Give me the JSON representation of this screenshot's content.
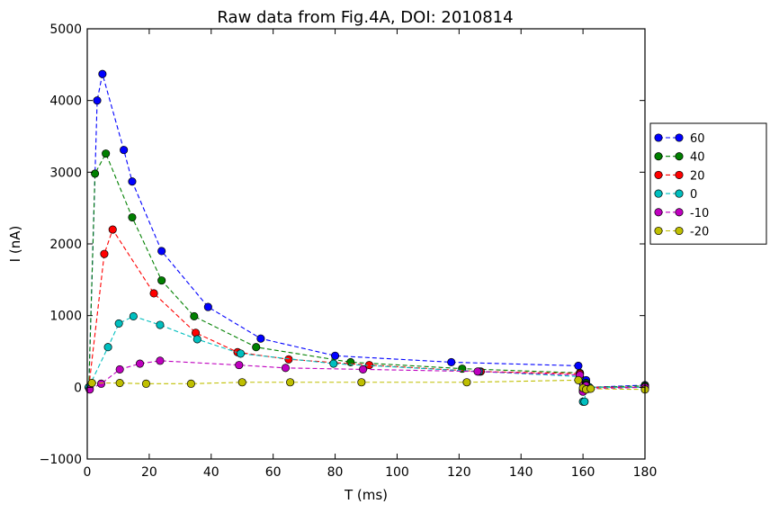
{
  "chart_data": {
    "type": "line",
    "title": "Raw data from Fig.4A, DOI: 2010814",
    "xlabel": "T (ms)",
    "ylabel": "I (nA)",
    "xlim": [
      0,
      180
    ],
    "ylim": [
      -1000,
      5000
    ],
    "x_ticks": [
      "0",
      "20",
      "40",
      "60",
      "80",
      "100",
      "120",
      "140",
      "160",
      "180"
    ],
    "y_ticks": [
      "−1000",
      "0",
      "1000",
      "2000",
      "3000",
      "4000",
      "5000"
    ],
    "grid": false,
    "legend_position": "outside-right",
    "line_style": "dashed",
    "series": [
      {
        "name": "60",
        "color": "#0000ff",
        "x": [
          0.5,
          3.2,
          4.9,
          11.8,
          14.5,
          24.0,
          39.0,
          56.0,
          80.0,
          117.5,
          158.5,
          160.0,
          161.0,
          162.0,
          180.0
        ],
        "y": [
          0,
          4000,
          4370,
          3310,
          2870,
          1900,
          1120,
          680,
          440,
          350,
          300,
          50,
          100,
          0,
          30
        ]
      },
      {
        "name": "40",
        "color": "#008000",
        "x": [
          0.5,
          2.5,
          6.0,
          14.5,
          24.0,
          34.5,
          54.5,
          85.0,
          121.0,
          159.0,
          160.0,
          161.0,
          162.0,
          180.0
        ],
        "y": [
          0,
          2980,
          3260,
          2370,
          1490,
          990,
          560,
          350,
          260,
          200,
          -30,
          60,
          0,
          20
        ]
      },
      {
        "name": "20",
        "color": "#ff0000",
        "x": [
          0.5,
          5.5,
          8.2,
          21.5,
          35.0,
          48.5,
          65.0,
          91.0,
          127.0,
          159.0,
          160.0,
          161.0,
          162.0,
          180.0
        ],
        "y": [
          0,
          1860,
          2200,
          1310,
          760,
          490,
          390,
          310,
          220,
          190,
          -60,
          40,
          0,
          0
        ]
      },
      {
        "name": "0",
        "color": "#00bfbf",
        "x": [
          0.5,
          6.7,
          10.2,
          14.9,
          23.5,
          35.5,
          49.5,
          79.5,
          126.5,
          159.0,
          160.0,
          160.5,
          161.0,
          162.0,
          180.0
        ],
        "y": [
          0,
          560,
          890,
          990,
          870,
          670,
          470,
          330,
          220,
          150,
          -200,
          -200,
          30,
          0,
          0
        ]
      },
      {
        "name": "-10",
        "color": "#bf00bf",
        "x": [
          0.8,
          4.5,
          10.5,
          17.0,
          23.5,
          49.0,
          64.0,
          89.0,
          126.0,
          159.0,
          160.0,
          161.0,
          162.0,
          180.0
        ],
        "y": [
          -30,
          50,
          250,
          330,
          370,
          310,
          270,
          250,
          220,
          170,
          -60,
          20,
          -20,
          0
        ]
      },
      {
        "name": "-20",
        "color": "#bfbf00",
        "x": [
          1.5,
          10.5,
          19.0,
          33.5,
          50.0,
          65.5,
          88.5,
          122.5,
          158.5,
          160.0,
          161.0,
          162.5,
          180.0
        ],
        "y": [
          60,
          60,
          50,
          50,
          70,
          70,
          70,
          70,
          100,
          -10,
          -30,
          -20,
          -30
        ]
      }
    ]
  }
}
